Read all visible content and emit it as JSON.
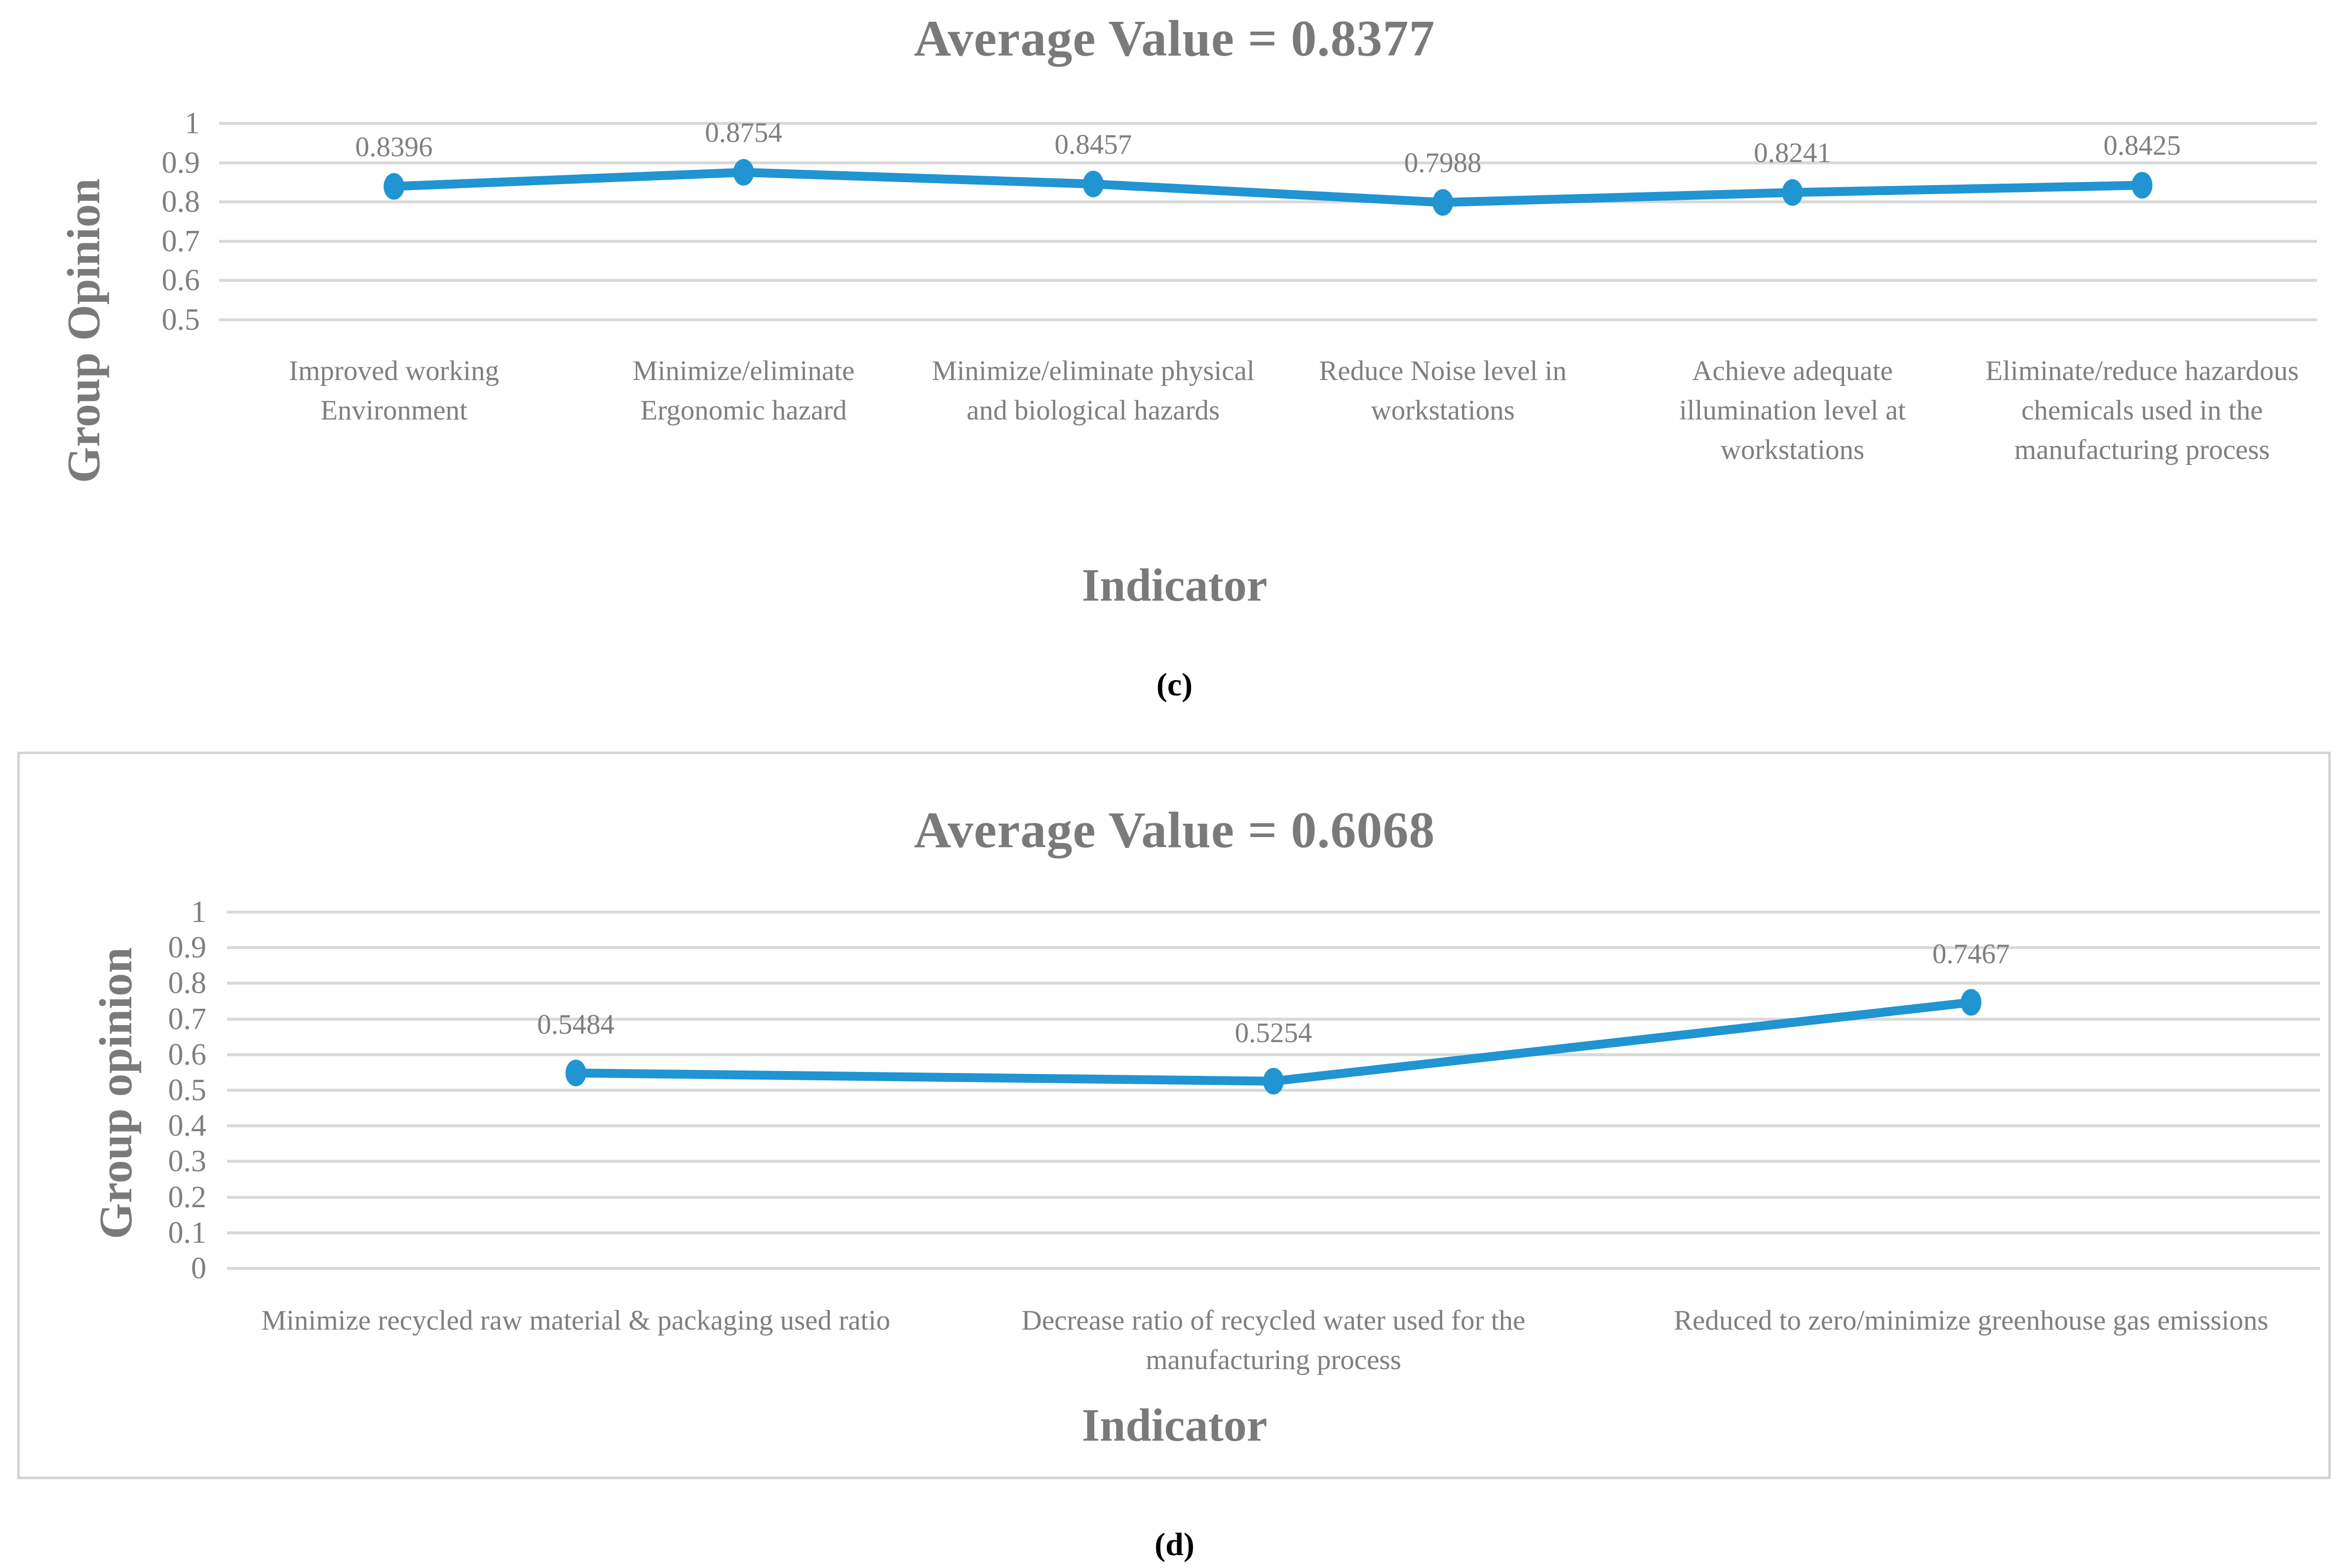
{
  "page_background": "#FFFFFF",
  "chart_data": [
    {
      "type": "line",
      "title": "Average Value = 0.8377",
      "xlabel": "Indicator",
      "ylabel": "Group Opinion",
      "caption": "(c)",
      "categories": [
        "Improved working Environment",
        "Minimize/eliminate Ergonomic hazard",
        "Minimize/eliminate physical and biological hazards",
        "Reduce Noise level in workstations",
        "Achieve adequate illumination level at workstations",
        "Eliminate/reduce hazardous chemicals used in the manufacturing process"
      ],
      "values": [
        0.8396,
        0.8754,
        0.8457,
        0.7988,
        0.8241,
        0.8425
      ],
      "data_labels": [
        "0.8396",
        "0.8754",
        "0.8457",
        "0.7988",
        "0.8241",
        "0.8425"
      ],
      "ylim": [
        0.5,
        1
      ],
      "yticks": [
        "1",
        "0.9",
        "0.8",
        "0.7",
        "0.6",
        "0.5"
      ],
      "grid": true,
      "legend": false,
      "marker": "circle",
      "series_color": "#2194D2",
      "gridline_color": "#D9D9D9",
      "text_color": "#7F7F7F",
      "caption_color": "#000000"
    },
    {
      "type": "line",
      "title": "Average Value = 0.6068",
      "xlabel": "Indicator",
      "ylabel": "Group opinion",
      "caption": "(d)",
      "categories": [
        "Minimize recycled raw material & packaging used ratio",
        "Decrease ratio of recycled water used for the manufacturing process",
        "Reduced to zero/minimize greenhouse gas emissions"
      ],
      "values": [
        0.5484,
        0.5254,
        0.7467
      ],
      "data_labels": [
        "0.5484",
        "0.5254",
        "0.7467"
      ],
      "ylim": [
        0,
        1
      ],
      "yticks": [
        "1",
        "0.9",
        "0.8",
        "0.7",
        "0.6",
        "0.5",
        "0.4",
        "0.3",
        "0.2",
        "0.1",
        "0"
      ],
      "grid": true,
      "legend": false,
      "marker": "circle",
      "bordered": true,
      "border_color": "#D3D3D3",
      "series_color": "#2194D2",
      "gridline_color": "#D9D9D9",
      "text_color": "#7F7F7F",
      "caption_color": "#000000"
    }
  ]
}
